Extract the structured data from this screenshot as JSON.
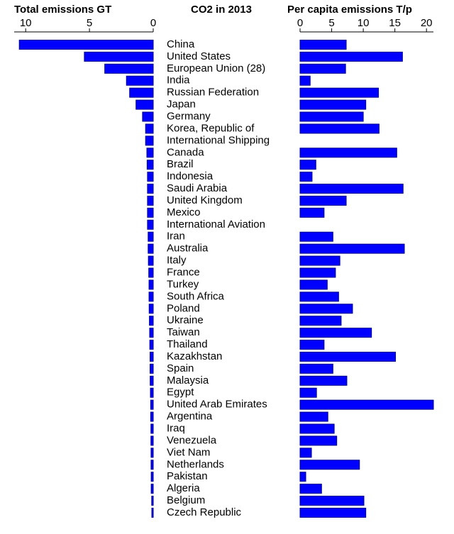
{
  "chart_data": {
    "type": "bar",
    "orientation": "horizontal",
    "title": "CO2 in 2013",
    "categories": [
      "China",
      "United States",
      "European Union (28)",
      "India",
      "Russian Federation",
      "Japan",
      "Germany",
      "Korea, Republic of",
      "International Shipping",
      "Canada",
      "Brazil",
      "Indonesia",
      "Saudi Arabia",
      "United Kingdom",
      "Mexico",
      "International Aviation",
      "Iran",
      "Australia",
      "Italy",
      "France",
      "Turkey",
      "South Africa",
      "Poland",
      "Ukraine",
      "Taiwan",
      "Thailand",
      "Kazakhstan",
      "Spain",
      "Malaysia",
      "Egypt",
      "United Arab Emirates",
      "Argentina",
      "Iraq",
      "Venezuela",
      "Viet Nam",
      "Netherlands",
      "Pakistan",
      "Algeria",
      "Belgium",
      "Czech Republic"
    ],
    "series": [
      {
        "name": "Total emissions GT",
        "color": "#0000ff",
        "reversed": true,
        "xlim": [
          0,
          10.9
        ],
        "xticks": [
          10,
          5,
          0
        ],
        "values": [
          10.5,
          5.4,
          3.8,
          2.1,
          1.85,
          1.35,
          0.84,
          0.6,
          0.6,
          0.5,
          0.48,
          0.45,
          0.45,
          0.45,
          0.45,
          0.45,
          0.4,
          0.4,
          0.38,
          0.35,
          0.33,
          0.33,
          0.32,
          0.3,
          0.28,
          0.27,
          0.25,
          0.25,
          0.24,
          0.22,
          0.2,
          0.2,
          0.18,
          0.18,
          0.17,
          0.17,
          0.16,
          0.16,
          0.12,
          0.11
        ]
      },
      {
        "name": "Per capita emissions T/p",
        "color": "#0000ff",
        "reversed": false,
        "xlim": [
          0,
          21.1
        ],
        "xticks": [
          0,
          5,
          10,
          15,
          20
        ],
        "values": [
          7.3,
          16.2,
          7.2,
          1.6,
          12.4,
          10.4,
          10.0,
          12.5,
          null,
          15.3,
          2.5,
          1.9,
          16.3,
          7.3,
          3.8,
          null,
          5.2,
          16.5,
          6.3,
          5.6,
          4.3,
          6.1,
          8.3,
          6.5,
          11.3,
          3.8,
          15.1,
          5.2,
          7.4,
          2.6,
          21.1,
          4.4,
          5.4,
          5.8,
          1.8,
          9.4,
          0.9,
          3.4,
          10.1,
          10.4
        ]
      }
    ]
  }
}
